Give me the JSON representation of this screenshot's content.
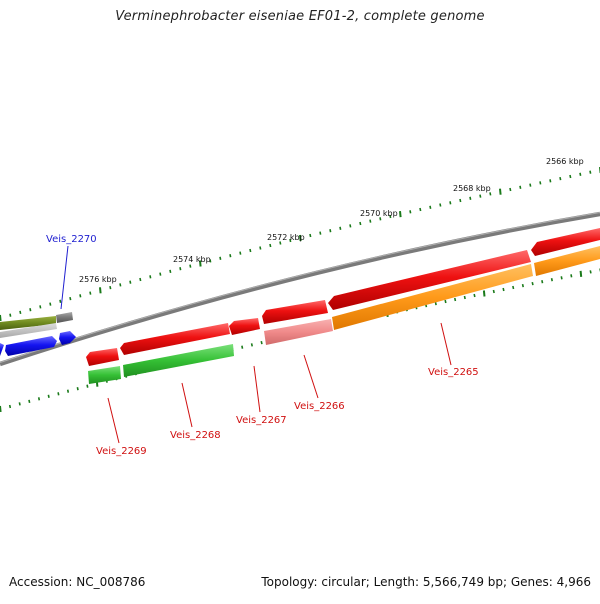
{
  "title": "Verminephrobacter eiseniae EF01-2, complete genome",
  "footer": {
    "accession": "Accession: NC_008786",
    "summary": "Topology: circular; Length: 5,566,749 bp; Genes: 4,966"
  },
  "scale_labels": [
    {
      "text": "2566 kbp"
    },
    {
      "text": "2568 kbp"
    },
    {
      "text": "2570 kbp"
    },
    {
      "text": "2572 kbp"
    },
    {
      "text": "2574 kbp"
    },
    {
      "text": "2576 kbp"
    }
  ],
  "gene_labels": [
    {
      "text": "Veis_2270",
      "color": "#1f1fd0"
    },
    {
      "text": "Veis_2269",
      "color": "#d01010"
    },
    {
      "text": "Veis_2268",
      "color": "#d01010"
    },
    {
      "text": "Veis_2267",
      "color": "#d01010"
    },
    {
      "text": "Veis_2266",
      "color": "#d01010"
    },
    {
      "text": "Veis_2265",
      "color": "#d01010"
    }
  ],
  "colors": {
    "backbone": "#7a7a7a",
    "tick": "#1a7a1a",
    "cds_red": "#e81010",
    "cds_blue": "#1414f0",
    "rrna_green": "#3cc43c",
    "orange": "#ff9a1a",
    "pink": "#f08a8a",
    "olive": "#6f8a1f",
    "gray": "#7a7a7a"
  }
}
